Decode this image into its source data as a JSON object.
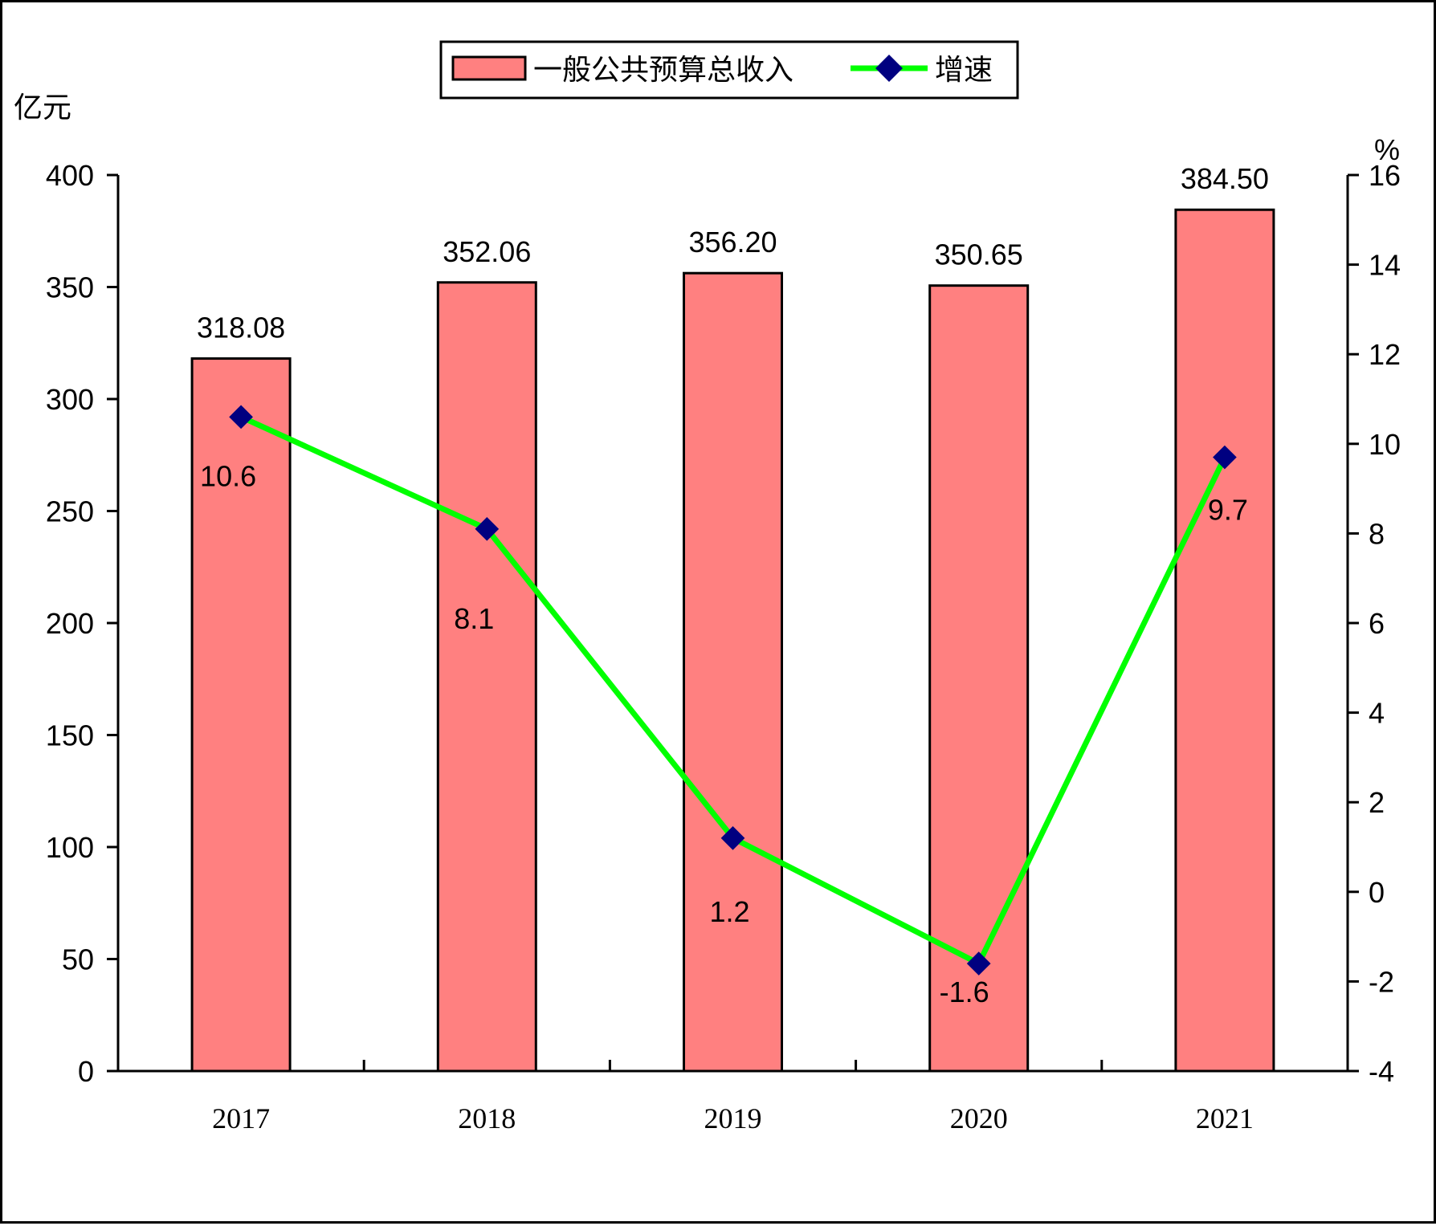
{
  "chart_data": {
    "type": "bar",
    "categories": [
      "2017",
      "2018",
      "2019",
      "2020",
      "2021"
    ],
    "series": [
      {
        "name": "一般公共预算总收入",
        "kind": "bar",
        "axis": "left",
        "values": [
          318.08,
          352.06,
          356.2,
          350.65,
          384.5
        ],
        "labels": [
          "318.08",
          "352.06",
          "356.20",
          "350.65",
          "384.50"
        ],
        "color": "#FF8080"
      },
      {
        "name": "增速",
        "kind": "line",
        "axis": "right",
        "values": [
          10.6,
          8.1,
          1.2,
          -1.6,
          9.7
        ],
        "labels": [
          "10.6",
          "8.1",
          "1.2",
          "-1.6",
          "9.7"
        ],
        "color": "#00FF00",
        "marker_color": "#000080"
      }
    ],
    "ylabel": "亿元",
    "y2label": "%",
    "ylim": [
      0,
      400
    ],
    "y2lim": [
      -4,
      16
    ],
    "yticks": [
      "0",
      "50",
      "100",
      "150",
      "200",
      "250",
      "300",
      "350",
      "400"
    ],
    "y2ticks": [
      "-4",
      "-2",
      "0",
      "2",
      "4",
      "6",
      "8",
      "10",
      "12",
      "14",
      "16"
    ],
    "grid": false,
    "legend": "top-center"
  }
}
